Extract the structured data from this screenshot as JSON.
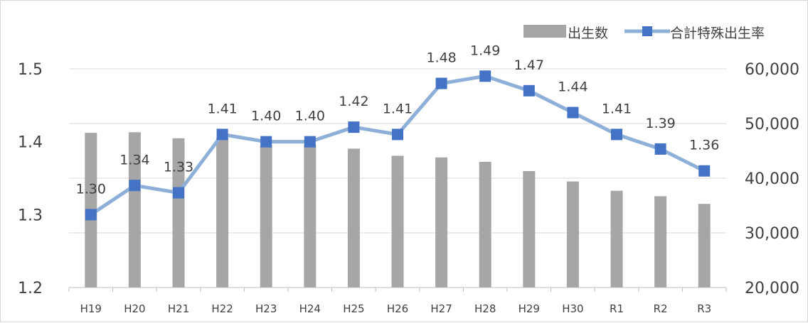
{
  "chart_data": {
    "type": "bar",
    "categories": [
      "H19",
      "H20",
      "H21",
      "H22",
      "H23",
      "H24",
      "H25",
      "H26",
      "H27",
      "H28",
      "H29",
      "H30",
      "R1",
      "R2",
      "R3"
    ],
    "series": [
      {
        "name": "出生数",
        "type": "bar",
        "axis": "right",
        "color": "#a6a6a6",
        "values": [
          48300,
          48400,
          47300,
          47400,
          46000,
          46200,
          45400,
          44100,
          43800,
          43000,
          41300,
          39400,
          37700,
          36700,
          35300
        ]
      },
      {
        "name": "合計特殊出生率",
        "type": "line",
        "axis": "left",
        "color": "#8eafd8",
        "marker_color": "#4472c4",
        "values": [
          1.3,
          1.34,
          1.33,
          1.41,
          1.4,
          1.4,
          1.42,
          1.41,
          1.48,
          1.49,
          1.47,
          1.44,
          1.41,
          1.39,
          1.36
        ],
        "labels": [
          "1.30",
          "1.34",
          "1.33",
          "1.41",
          "1.40",
          "1.40",
          "1.42",
          "1.41",
          "1.48",
          "1.49",
          "1.47",
          "1.44",
          "1.41",
          "1.39",
          "1.36"
        ]
      }
    ],
    "y_left": {
      "ylim": [
        1.2,
        1.5
      ],
      "ticks": [
        "1.2",
        "1.3",
        "1.4",
        "1.5"
      ]
    },
    "y_right": {
      "ylim": [
        20000,
        60000
      ],
      "ticks": [
        "20,000",
        "30,000",
        "40,000",
        "50,000",
        "60,000"
      ]
    },
    "grid": true,
    "legend_position": "top-right",
    "title": "",
    "xlabel": "",
    "ylabel": ""
  }
}
